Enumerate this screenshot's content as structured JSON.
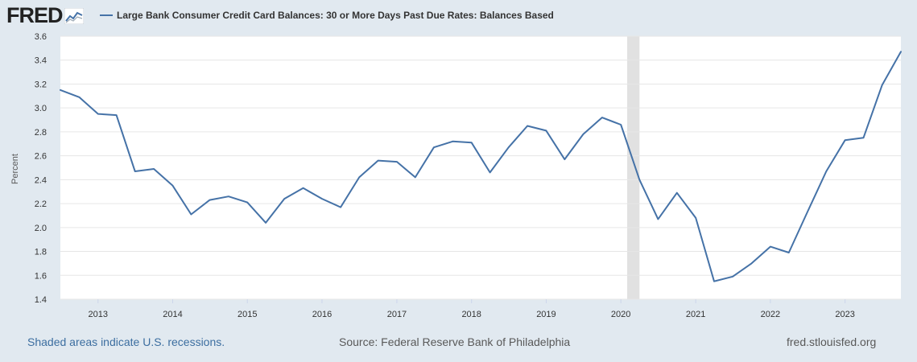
{
  "header": {
    "logo_text": "FRED",
    "logo_icon": "line-graph-icon",
    "legend_label": "Large Bank Consumer Credit Card Balances: 30 or More Days Past Due Rates: Balances Based"
  },
  "footer": {
    "recession_note": "Shaded areas indicate U.S. recessions.",
    "source": "Source: Federal Reserve Bank of Philadelphia",
    "site": "fred.stlouisfed.org"
  },
  "colors": {
    "page_bg": "#e1e9f0",
    "plot_bg": "#ffffff",
    "series": "#4572a7",
    "recession": "#e1e1e1",
    "grid": "#e6e6e6"
  },
  "chart_data": {
    "type": "line",
    "ylabel": "Percent",
    "xlabel": "",
    "ylim": [
      1.4,
      3.6
    ],
    "yticks": [
      1.4,
      1.6,
      1.8,
      2.0,
      2.2,
      2.4,
      2.6,
      2.8,
      3.0,
      3.2,
      3.4,
      3.6
    ],
    "ytick_labels": [
      "1.4",
      "1.6",
      "1.8",
      "2.0",
      "2.2",
      "2.4",
      "2.6",
      "2.8",
      "3.0",
      "3.2",
      "3.4",
      "3.6"
    ],
    "xlim": [
      "2012-07-01",
      "2023-10-01"
    ],
    "xticks": [
      "2013-01-01",
      "2014-01-01",
      "2015-01-01",
      "2016-01-01",
      "2017-01-01",
      "2018-01-01",
      "2019-01-01",
      "2020-01-01",
      "2021-01-01",
      "2022-01-01",
      "2023-01-01"
    ],
    "xtick_labels": [
      "2013",
      "2014",
      "2015",
      "2016",
      "2017",
      "2018",
      "2019",
      "2020",
      "2021",
      "2022",
      "2023"
    ],
    "grid": "horizontal",
    "recessions": [
      {
        "start": "2020-02-01",
        "end": "2020-04-01"
      }
    ],
    "series": [
      {
        "name": "Large Bank Consumer Credit Card Balances: 30 or More Days Past Due Rates: Balances Based",
        "color": "#4572a7",
        "x": [
          "2012-07-01",
          "2012-10-01",
          "2013-01-01",
          "2013-04-01",
          "2013-07-01",
          "2013-10-01",
          "2014-01-01",
          "2014-04-01",
          "2014-07-01",
          "2014-10-01",
          "2015-01-01",
          "2015-04-01",
          "2015-07-01",
          "2015-10-01",
          "2016-01-01",
          "2016-04-01",
          "2016-07-01",
          "2016-10-01",
          "2017-01-01",
          "2017-04-01",
          "2017-07-01",
          "2017-10-01",
          "2018-01-01",
          "2018-04-01",
          "2018-07-01",
          "2018-10-01",
          "2019-01-01",
          "2019-04-01",
          "2019-07-01",
          "2019-10-01",
          "2020-01-01",
          "2020-04-01",
          "2020-07-01",
          "2020-10-01",
          "2021-01-01",
          "2021-04-01",
          "2021-07-01",
          "2021-10-01",
          "2022-01-01",
          "2022-04-01",
          "2022-07-01",
          "2022-10-01",
          "2023-01-01",
          "2023-04-01",
          "2023-07-01",
          "2023-10-01"
        ],
        "y": [
          3.15,
          3.09,
          2.95,
          2.94,
          2.47,
          2.49,
          2.35,
          2.11,
          2.23,
          2.26,
          2.21,
          2.04,
          2.24,
          2.33,
          2.24,
          2.17,
          2.42,
          2.56,
          2.55,
          2.42,
          2.67,
          2.72,
          2.71,
          2.46,
          2.67,
          2.85,
          2.81,
          2.57,
          2.78,
          2.92,
          2.86,
          2.4,
          2.07,
          2.29,
          2.08,
          1.55,
          1.59,
          1.7,
          1.84,
          1.79,
          2.13,
          2.47,
          2.73,
          2.75,
          3.19,
          3.47
        ]
      }
    ]
  }
}
